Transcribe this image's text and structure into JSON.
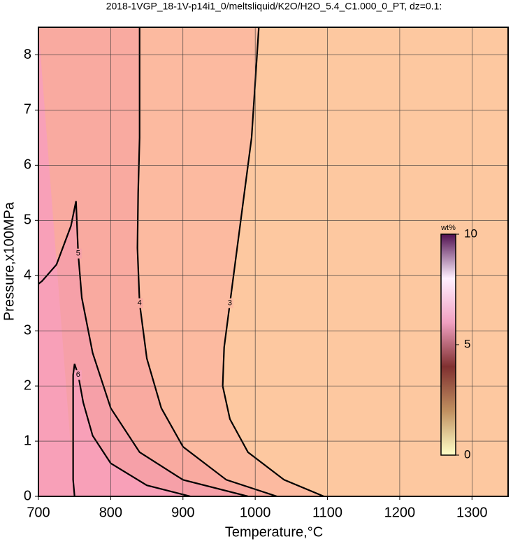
{
  "chart_data": {
    "type": "contour",
    "title": "2018-1VGP_18-1V-p14i1_0/meltsliquid/K2O/H2O_5.4_C1.000_0_PT, dz=0.1:",
    "x_label": "Temperature,°C",
    "y_label": "Pressure,x100MPa",
    "xlim": [
      700,
      1350
    ],
    "xticks": [
      700,
      800,
      900,
      1000,
      1100,
      1200,
      1300
    ],
    "ylim": [
      0,
      8.5
    ],
    "yticks": [
      0,
      1,
      2,
      3,
      4,
      5,
      6,
      7,
      8
    ],
    "grid": true,
    "background_color": "#fdc8a0",
    "levels": [
      {
        "level": 3,
        "color": "#fcbaa0",
        "x": [
          1095,
          1040,
          990,
          965,
          955,
          957,
          965,
          975,
          985,
          995,
          1000,
          1005
        ],
        "y": [
          0,
          0.3,
          0.8,
          1.4,
          2,
          2.7,
          3.5,
          4.5,
          5.5,
          6.5,
          7.5,
          8.5
        ]
      },
      {
        "level": 4,
        "color": "#f9aaa0",
        "x": [
          1030,
          960,
          900,
          870,
          850,
          840,
          837,
          838,
          840,
          840,
          840
        ],
        "y": [
          0,
          0.3,
          0.9,
          1.6,
          2.5,
          3.5,
          4.5,
          5.5,
          6.5,
          7.5,
          8.5
        ]
      },
      {
        "level": 5,
        "color": "#f6a0a8",
        "x": [
          990,
          900,
          840,
          800,
          775,
          760,
          755,
          752,
          745,
          725,
          705,
          700
        ],
        "y": [
          0,
          0.3,
          0.8,
          1.6,
          2.6,
          3.6,
          4.4,
          5.35,
          4.9,
          4.2,
          3.9,
          3.85
        ]
      },
      {
        "level": 6,
        "color": "#f8a0b8",
        "x": [
          910,
          850,
          800,
          775,
          762,
          755,
          750,
          748,
          748,
          748,
          750
        ],
        "y": [
          0,
          0.2,
          0.6,
          1.1,
          1.7,
          2.2,
          2.4,
          2.2,
          1.2,
          0.3,
          0
        ]
      }
    ],
    "colorbar": {
      "label": "wt%",
      "clim": [
        0,
        10
      ],
      "ticks": [
        0,
        5,
        10
      ],
      "colormap": [
        "#ffffc8",
        "#c09060",
        "#803030",
        "#f0a0c0",
        "#fff0ff",
        "#501050"
      ]
    }
  }
}
